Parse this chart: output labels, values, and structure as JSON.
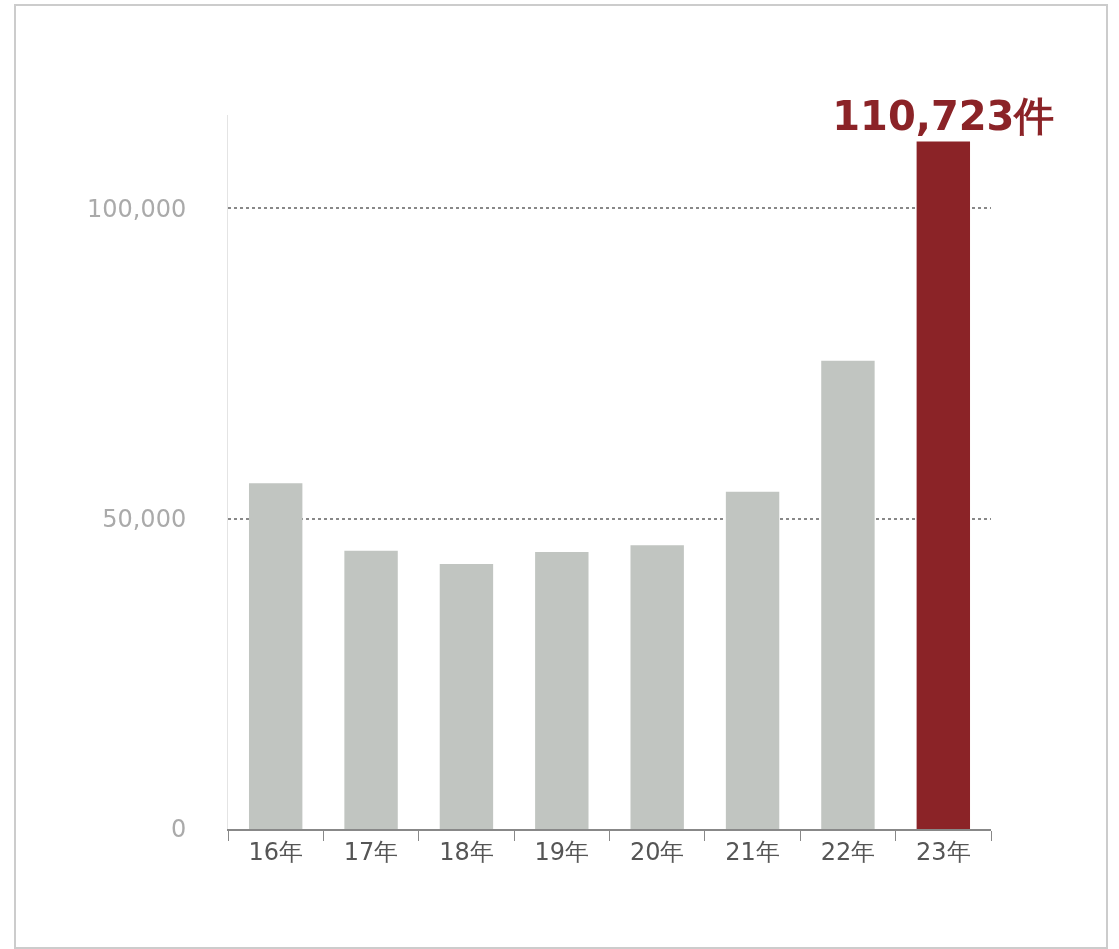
{
  "chart_data": {
    "type": "bar",
    "categories": [
      "16年",
      "17年",
      "18年",
      "19年",
      "20年",
      "21年",
      "22年",
      "23年"
    ],
    "values": [
      55700,
      44800,
      42700,
      44600,
      45700,
      54300,
      75400,
      110723
    ],
    "colors": [
      "#c1c5c1",
      "#c1c5c1",
      "#c1c5c1",
      "#c1c5c1",
      "#c1c5c1",
      "#c1c5c1",
      "#c1c5c1",
      "#8b2327"
    ],
    "value_labels": [
      null,
      null,
      null,
      null,
      null,
      null,
      null,
      "110,723件"
    ],
    "yticks": [
      0,
      {
        "value": 50000,
        "label": "50,000"
      },
      {
        "value": 100000,
        "label": "100,000"
      }
    ],
    "ylim": [
      0,
      115000
    ],
    "grid": "y"
  }
}
